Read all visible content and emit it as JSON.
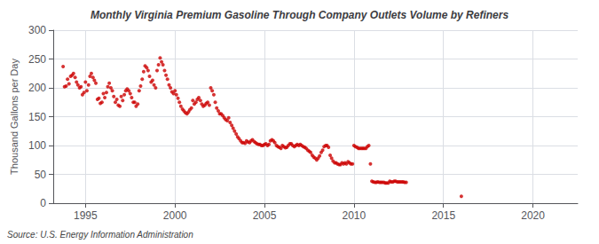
{
  "chart_data": {
    "type": "scatter",
    "title": "Monthly Virginia Premium Gasoline Through Company Outlets Volume by Refiners",
    "ylabel": "Thousand Gallons per Day",
    "annotations": [
      "Source: U.S. Energy Information Administration"
    ],
    "color": "#cc0000",
    "grid": true,
    "xlim": [
      1993.2,
      2022.5
    ],
    "xticks": [
      1995,
      2000,
      2005,
      2010,
      2015,
      2020
    ],
    "ylim": [
      0,
      300
    ],
    "yticks": [
      0,
      50,
      100,
      150,
      200,
      250,
      300
    ],
    "x": [
      1993.75,
      1993.83,
      1993.92,
      1994.0,
      1994.08,
      1994.17,
      1994.25,
      1994.33,
      1994.42,
      1994.5,
      1994.58,
      1994.67,
      1994.75,
      1994.83,
      1994.92,
      1995.0,
      1995.08,
      1995.17,
      1995.25,
      1995.33,
      1995.42,
      1995.5,
      1995.58,
      1995.67,
      1995.75,
      1995.83,
      1995.92,
      1996.0,
      1996.08,
      1996.17,
      1996.25,
      1996.33,
      1996.42,
      1996.5,
      1996.58,
      1996.67,
      1996.75,
      1996.83,
      1996.92,
      1997.0,
      1997.08,
      1997.17,
      1997.25,
      1997.33,
      1997.42,
      1997.5,
      1997.58,
      1997.67,
      1997.75,
      1997.83,
      1997.92,
      1998.0,
      1998.08,
      1998.17,
      1998.25,
      1998.33,
      1998.42,
      1998.5,
      1998.58,
      1998.67,
      1998.75,
      1998.83,
      1998.92,
      1999.0,
      1999.08,
      1999.17,
      1999.25,
      1999.33,
      1999.42,
      1999.5,
      1999.58,
      1999.67,
      1999.75,
      1999.83,
      1999.92,
      2000.0,
      2000.08,
      2000.17,
      2000.25,
      2000.33,
      2000.42,
      2000.5,
      2000.58,
      2000.67,
      2000.75,
      2000.83,
      2000.92,
      2001.0,
      2001.08,
      2001.17,
      2001.25,
      2001.33,
      2001.42,
      2001.5,
      2001.58,
      2001.67,
      2001.75,
      2001.83,
      2001.92,
      2002.0,
      2002.08,
      2002.17,
      2002.25,
      2002.33,
      2002.42,
      2002.5,
      2002.58,
      2002.67,
      2002.75,
      2002.83,
      2002.92,
      2003.0,
      2003.08,
      2003.17,
      2003.25,
      2003.33,
      2003.42,
      2003.5,
      2003.58,
      2003.67,
      2003.75,
      2003.83,
      2003.92,
      2004.0,
      2004.08,
      2004.17,
      2004.25,
      2004.33,
      2004.42,
      2004.5,
      2004.58,
      2004.67,
      2004.75,
      2004.83,
      2004.92,
      2005.0,
      2005.08,
      2005.17,
      2005.25,
      2005.33,
      2005.42,
      2005.5,
      2005.58,
      2005.67,
      2005.75,
      2005.83,
      2005.92,
      2006.0,
      2006.08,
      2006.17,
      2006.25,
      2006.33,
      2006.42,
      2006.5,
      2006.58,
      2006.67,
      2006.75,
      2006.83,
      2006.92,
      2007.0,
      2007.08,
      2007.17,
      2007.25,
      2007.33,
      2007.42,
      2007.5,
      2007.58,
      2007.67,
      2007.75,
      2007.83,
      2007.92,
      2008.0,
      2008.08,
      2008.17,
      2008.25,
      2008.33,
      2008.42,
      2008.5,
      2008.58,
      2008.67,
      2008.75,
      2008.83,
      2008.92,
      2009.0,
      2009.08,
      2009.17,
      2009.25,
      2009.33,
      2009.42,
      2009.5,
      2009.58,
      2009.67,
      2009.75,
      2009.83,
      2009.92,
      2010.0,
      2010.08,
      2010.17,
      2010.25,
      2010.33,
      2010.42,
      2010.5,
      2010.58,
      2010.67,
      2010.75,
      2010.83,
      2010.92,
      2011.0,
      2011.08,
      2011.17,
      2011.25,
      2011.33,
      2011.42,
      2011.5,
      2011.58,
      2011.67,
      2011.75,
      2011.83,
      2011.92,
      2012.0,
      2012.08,
      2012.17,
      2012.25,
      2012.33,
      2012.42,
      2012.5,
      2012.58,
      2012.67,
      2012.75,
      2012.83,
      2012.92,
      2016.0
    ],
    "values": [
      237,
      202,
      203,
      215,
      207,
      220,
      222,
      225,
      218,
      210,
      205,
      200,
      202,
      188,
      192,
      210,
      195,
      205,
      220,
      225,
      218,
      213,
      208,
      180,
      182,
      173,
      175,
      190,
      183,
      192,
      202,
      208,
      200,
      195,
      185,
      175,
      180,
      170,
      168,
      185,
      178,
      188,
      195,
      198,
      195,
      190,
      183,
      175,
      175,
      168,
      172,
      195,
      203,
      215,
      228,
      238,
      235,
      230,
      220,
      210,
      213,
      205,
      200,
      230,
      240,
      252,
      245,
      240,
      230,
      222,
      215,
      205,
      200,
      193,
      190,
      195,
      188,
      182,
      175,
      168,
      163,
      160,
      157,
      155,
      158,
      162,
      165,
      178,
      172,
      175,
      180,
      183,
      178,
      172,
      168,
      170,
      173,
      175,
      170,
      200,
      195,
      188,
      175,
      165,
      160,
      155,
      155,
      152,
      148,
      145,
      143,
      148,
      140,
      135,
      130,
      125,
      120,
      115,
      112,
      108,
      105,
      105,
      104,
      108,
      106,
      105,
      108,
      110,
      107,
      105,
      103,
      102,
      102,
      100,
      100,
      102,
      103,
      100,
      102,
      108,
      110,
      108,
      105,
      100,
      98,
      97,
      95,
      100,
      98,
      96,
      97,
      100,
      103,
      103,
      100,
      98,
      100,
      102,
      100,
      102,
      100,
      98,
      97,
      95,
      92,
      90,
      88,
      83,
      80,
      78,
      75,
      78,
      82,
      88,
      92,
      98,
      100,
      100,
      97,
      83,
      78,
      73,
      70,
      70,
      68,
      67,
      67,
      70,
      68,
      70,
      68,
      72,
      70,
      68,
      68,
      100,
      98,
      97,
      95,
      95,
      95,
      95,
      95,
      95,
      98,
      100,
      68,
      38,
      37,
      36,
      36,
      37,
      36,
      36,
      36,
      36,
      35,
      35,
      35,
      38,
      37,
      37,
      38,
      38,
      37,
      37,
      37,
      37,
      37,
      36,
      36,
      12
    ]
  }
}
